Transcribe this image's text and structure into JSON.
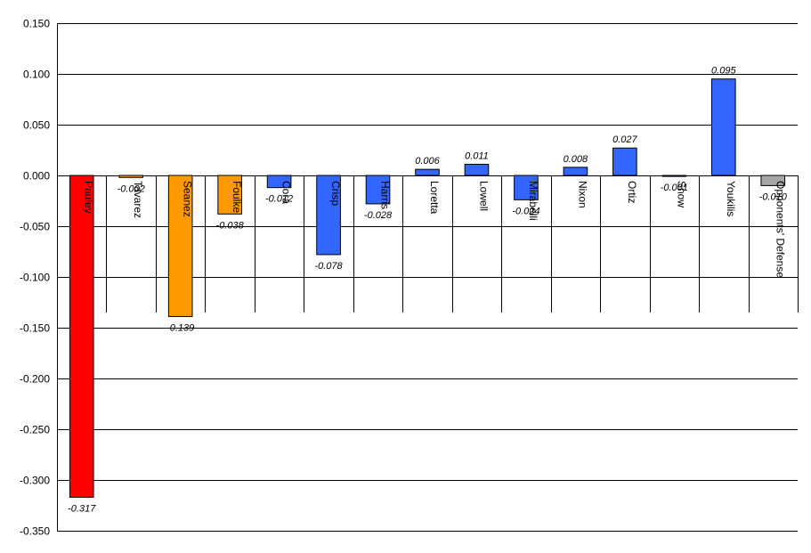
{
  "chart_data": {
    "type": "bar",
    "title": "",
    "xlabel": "",
    "ylabel": "",
    "ylim": [
      -0.35,
      0.15
    ],
    "yticks": [
      0.15,
      0.1,
      0.05,
      0.0,
      -0.05,
      -0.1,
      -0.15,
      -0.2,
      -0.25,
      -0.3,
      -0.35
    ],
    "ytick_labels": [
      "0.150",
      "0.100",
      "0.050",
      "0.000",
      "-0.050",
      "-0.100",
      "-0.150",
      "-0.200",
      "-0.250",
      "-0.300",
      "-0.350"
    ],
    "grid": true,
    "legend": "none",
    "categories": [
      "Pauley",
      "Tavarez",
      "Seanez",
      "Foulke",
      "Cora",
      "Crisp",
      "Harris",
      "Loretta",
      "Lowell",
      "Mirabelli",
      "Nixon",
      "Ortiz",
      "Snow",
      "Youkilis",
      "Opponents' Defense"
    ],
    "values": [
      -0.317,
      -0.002,
      -0.139,
      -0.038,
      -0.012,
      -0.078,
      -0.028,
      0.006,
      0.011,
      -0.024,
      0.008,
      0.027,
      -0.001,
      0.095,
      -0.01
    ],
    "value_labels": [
      "-0.317",
      "-0.002",
      "-0.139",
      "-0.038",
      "-0.012",
      "-0.078",
      "-0.028",
      "0.006",
      "0.011",
      "-0.024",
      "0.008",
      "0.027",
      "-0.001",
      "0.095",
      "-0.010"
    ],
    "bar_colors": [
      "#ff0000",
      "#ff9900",
      "#ff9900",
      "#ff9900",
      "#3366ff",
      "#3366ff",
      "#3366ff",
      "#3366ff",
      "#3366ff",
      "#3366ff",
      "#3366ff",
      "#3366ff",
      "#3366ff",
      "#3366ff",
      "#a6a6a6"
    ]
  }
}
